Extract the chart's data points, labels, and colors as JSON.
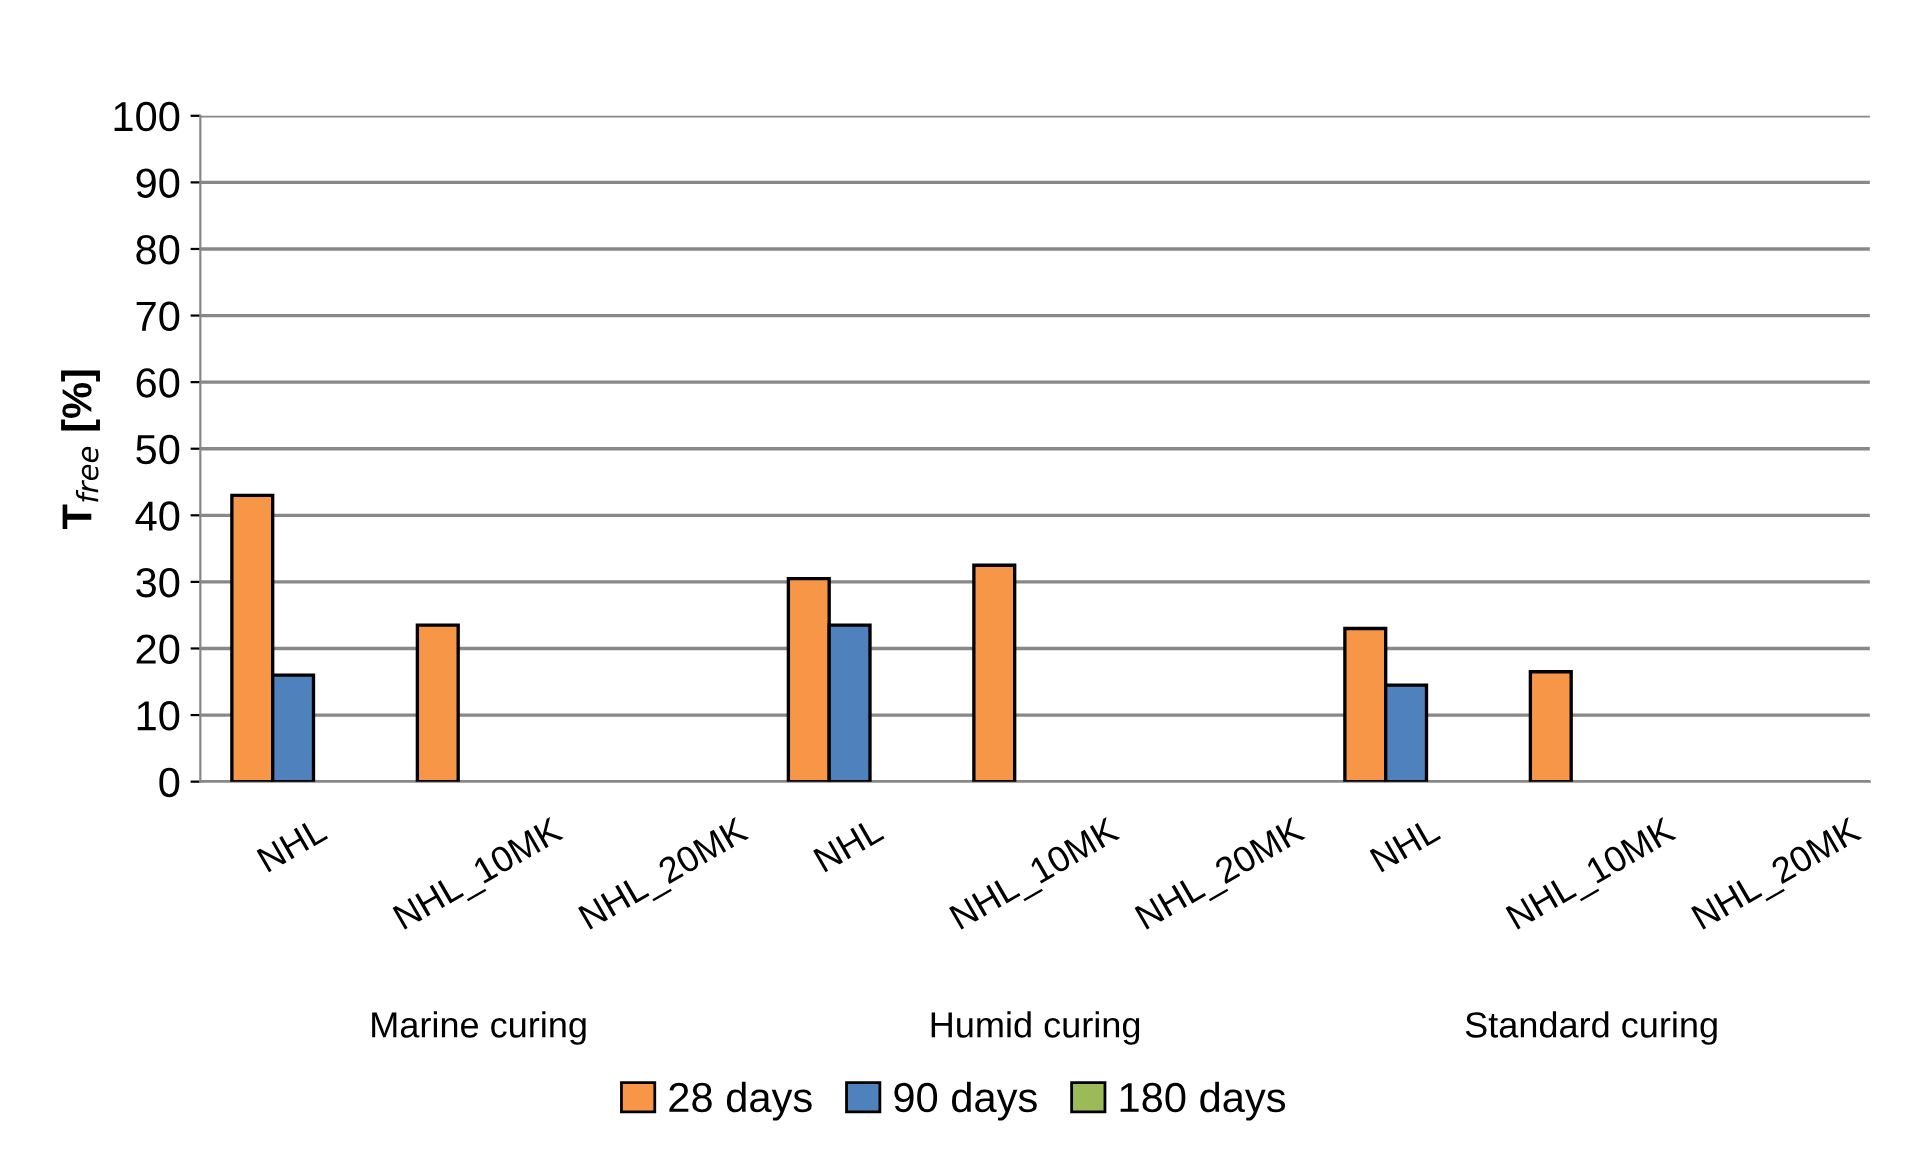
{
  "chart_data": {
    "type": "bar",
    "ylabel": "T$_{free}$ [%]",
    "categories": [
      "NHL",
      "NHL_10MK",
      "NHL_20MK",
      "NHL",
      "NHL_10MK",
      "NHL_20MK",
      "NHL",
      "NHL_10MK",
      "NHL_20MK"
    ],
    "series": [
      {
        "name": "28 days",
        "color": "#f79646",
        "values": [
          43,
          23.5,
          null,
          30.5,
          32.5,
          null,
          23,
          16.5,
          null
        ]
      },
      {
        "name": "90 days",
        "color": "#4f81bd",
        "values": [
          16,
          null,
          null,
          23.5,
          null,
          null,
          14.5,
          null,
          null
        ]
      },
      {
        "name": "180 days",
        "color": "#9bbb59",
        "values": [
          null,
          null,
          null,
          null,
          null,
          null,
          null,
          null,
          null
        ]
      }
    ],
    "annotations": [
      "Marine curing",
      "Humid curing",
      "Standard curing"
    ],
    "ylim": [
      0,
      100
    ],
    "yticks": [
      0,
      10,
      20,
      30,
      40,
      50,
      60,
      70,
      80,
      90,
      100
    ],
    "grid": "y",
    "legend": "bottom"
  }
}
